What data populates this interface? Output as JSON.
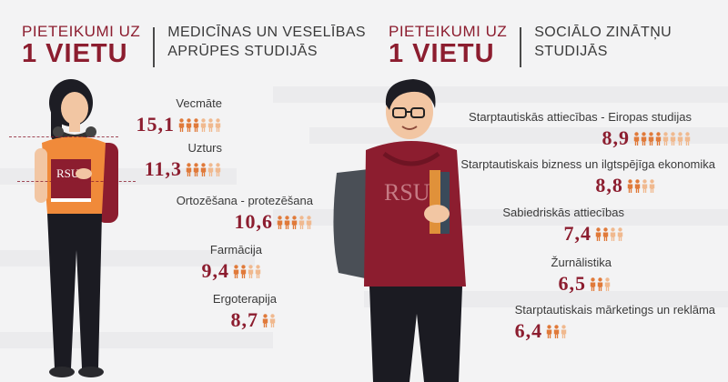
{
  "colors": {
    "accent": "#8c1d2f",
    "person_full": "#e07a3a",
    "person_light": "#f0b98f",
    "text": "#3a3a3a"
  },
  "left": {
    "kicker_line1": "PIETEIKUMI UZ",
    "kicker_line2": "1 VIETU",
    "subtitle_line1": "MEDICĪNAS UN VESELĪBAS",
    "subtitle_line2": "APRŪPES STUDIJĀS",
    "items": [
      {
        "label": "Vecmāte",
        "value": "15,1",
        "people": 6
      },
      {
        "label": "Uzturs",
        "value": "11,3",
        "people": 5
      },
      {
        "label": "Ortozēšana - protezēšana",
        "value": "10,6",
        "people": 5
      },
      {
        "label": "Farmācija",
        "value": "9,4",
        "people": 4
      },
      {
        "label": "Ergoterapija",
        "value": "8,7",
        "people": 2
      }
    ]
  },
  "right": {
    "kicker_line1": "PIETEIKUMI UZ",
    "kicker_line2": "1 VIETU",
    "subtitle_line1": "SOCIĀLO ZINĀTŅU",
    "subtitle_line2": "STUDIJĀS",
    "items": [
      {
        "label": "Starptautiskās attiecības - Eiropas studijas",
        "value": "8,9",
        "people": 8
      },
      {
        "label": "Starptautiskais bizness un ilgtspējīga ekonomika",
        "value": "8,8",
        "people": 4
      },
      {
        "label": "Sabiedriskās attiecības",
        "value": "7,4",
        "people": 4
      },
      {
        "label": "Žurnālistika",
        "value": "6,5",
        "people": 3
      },
      {
        "label": "Starptautiskais mārketings un reklāma",
        "value": "6,4",
        "people": 3
      }
    ]
  },
  "figures": {
    "shirt_logo": "RSU"
  }
}
